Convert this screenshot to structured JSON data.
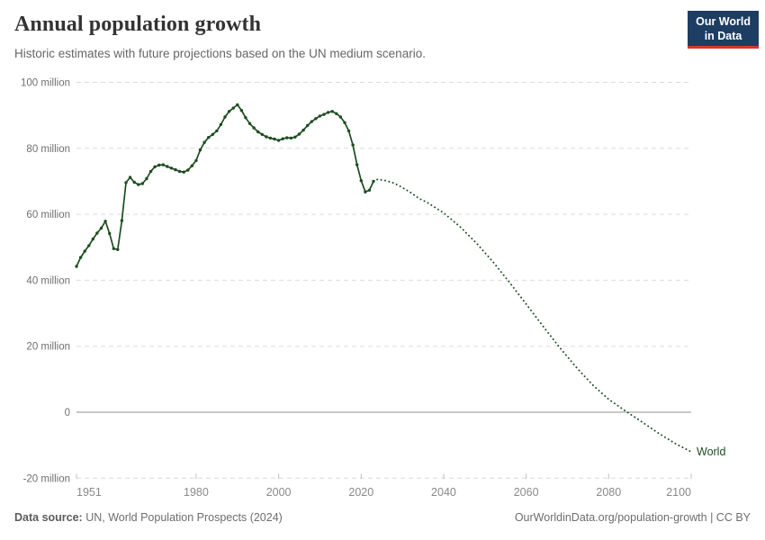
{
  "header": {
    "title": "Annual population growth",
    "subtitle": "Historic estimates with future projections based on the UN medium scenario.",
    "logo": {
      "line1": "Our World",
      "line2": "in Data",
      "bg_color": "#1d3d63",
      "stripe_color": "#d8352a"
    }
  },
  "footer": {
    "source_label": "Data source:",
    "source_text": " UN, World Population Prospects (2024)",
    "link_text": "OurWorldinData.org/population-growth | CC BY"
  },
  "chart_data": {
    "type": "line",
    "title": "Annual population growth",
    "xlabel": "",
    "ylabel": "",
    "unit": "million people per year",
    "entity_label": "World",
    "line_color": "#1d4d20",
    "grid": "horizontal dashed, solid line at 0",
    "legend_position": "end-of-line",
    "x_range": [
      1951,
      2100
    ],
    "y_range_millions": [
      -20,
      100
    ],
    "y_ticks": [
      {
        "value": 100,
        "label": "100 million"
      },
      {
        "value": 80,
        "label": "80 million"
      },
      {
        "value": 60,
        "label": "60 million"
      },
      {
        "value": 40,
        "label": "40 million"
      },
      {
        "value": 20,
        "label": "20 million"
      },
      {
        "value": 0,
        "label": "0"
      },
      {
        "value": -20,
        "label": "-20 million"
      }
    ],
    "x_ticks": [
      {
        "year": 1951,
        "label": "1951"
      },
      {
        "year": 1980,
        "label": "1980"
      },
      {
        "year": 2000,
        "label": "2000"
      },
      {
        "year": 2020,
        "label": "2020"
      },
      {
        "year": 2040,
        "label": "2040"
      },
      {
        "year": 2060,
        "label": "2060"
      },
      {
        "year": 2080,
        "label": "2080"
      },
      {
        "year": 2100,
        "label": "2100"
      }
    ],
    "series": [
      {
        "name": "World — historic estimates",
        "style": "solid-with-markers",
        "points": [
          [
            1951,
            44.2
          ],
          [
            1952,
            46.9
          ],
          [
            1953,
            48.8
          ],
          [
            1954,
            50.5
          ],
          [
            1955,
            52.5
          ],
          [
            1956,
            54.3
          ],
          [
            1957,
            55.8
          ],
          [
            1958,
            57.9
          ],
          [
            1959,
            54.2
          ],
          [
            1960,
            49.6
          ],
          [
            1961,
            49.3
          ],
          [
            1962,
            58.1
          ],
          [
            1963,
            69.6
          ],
          [
            1964,
            71.2
          ],
          [
            1965,
            69.7
          ],
          [
            1966,
            69.0
          ],
          [
            1967,
            69.3
          ],
          [
            1968,
            70.8
          ],
          [
            1969,
            73.0
          ],
          [
            1970,
            74.4
          ],
          [
            1971,
            74.9
          ],
          [
            1972,
            75.0
          ],
          [
            1973,
            74.5
          ],
          [
            1974,
            74.0
          ],
          [
            1975,
            73.5
          ],
          [
            1976,
            73.0
          ],
          [
            1977,
            72.8
          ],
          [
            1978,
            73.4
          ],
          [
            1979,
            74.7
          ],
          [
            1980,
            76.3
          ],
          [
            1981,
            79.5
          ],
          [
            1982,
            81.8
          ],
          [
            1983,
            83.3
          ],
          [
            1984,
            84.2
          ],
          [
            1985,
            85.3
          ],
          [
            1986,
            87.2
          ],
          [
            1987,
            89.5
          ],
          [
            1988,
            91.2
          ],
          [
            1989,
            92.2
          ],
          [
            1990,
            93.2
          ],
          [
            1991,
            91.5
          ],
          [
            1992,
            89.3
          ],
          [
            1993,
            87.5
          ],
          [
            1994,
            86.2
          ],
          [
            1995,
            85.0
          ],
          [
            1996,
            84.2
          ],
          [
            1997,
            83.5
          ],
          [
            1998,
            83.1
          ],
          [
            1999,
            82.8
          ],
          [
            2000,
            82.4
          ],
          [
            2001,
            82.9
          ],
          [
            2002,
            83.2
          ],
          [
            2003,
            83.1
          ],
          [
            2004,
            83.4
          ],
          [
            2005,
            84.3
          ],
          [
            2006,
            85.5
          ],
          [
            2007,
            86.9
          ],
          [
            2008,
            88.1
          ],
          [
            2009,
            89.0
          ],
          [
            2010,
            89.8
          ],
          [
            2011,
            90.3
          ],
          [
            2012,
            90.9
          ],
          [
            2013,
            91.2
          ],
          [
            2014,
            90.5
          ],
          [
            2015,
            89.5
          ],
          [
            2016,
            87.8
          ],
          [
            2017,
            85.3
          ],
          [
            2018,
            81.0
          ],
          [
            2019,
            75.0
          ],
          [
            2020,
            70.2
          ],
          [
            2021,
            66.8
          ],
          [
            2022,
            67.3
          ],
          [
            2023,
            70.0
          ]
        ]
      },
      {
        "name": "World — UN medium scenario projection",
        "style": "dotted",
        "points": [
          [
            2023,
            70.0
          ],
          [
            2024,
            70.6
          ],
          [
            2026,
            70.2
          ],
          [
            2028,
            69.4
          ],
          [
            2030,
            68.1
          ],
          [
            2032,
            66.6
          ],
          [
            2034,
            64.8
          ],
          [
            2036,
            63.6
          ],
          [
            2040,
            60.4
          ],
          [
            2044,
            56.2
          ],
          [
            2048,
            51.2
          ],
          [
            2052,
            45.5
          ],
          [
            2056,
            39.3
          ],
          [
            2060,
            32.8
          ],
          [
            2064,
            26.2
          ],
          [
            2068,
            19.8
          ],
          [
            2072,
            13.8
          ],
          [
            2076,
            8.4
          ],
          [
            2080,
            3.9
          ],
          [
            2084,
            0.4
          ],
          [
            2088,
            -2.9
          ],
          [
            2092,
            -6.3
          ],
          [
            2096,
            -9.4
          ],
          [
            2100,
            -12.0
          ]
        ]
      }
    ]
  }
}
